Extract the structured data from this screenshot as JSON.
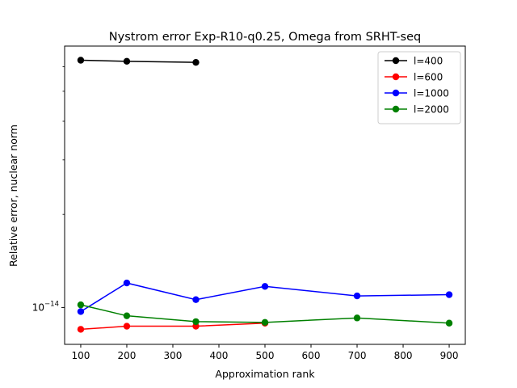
{
  "chart_data": {
    "type": "line",
    "title": "Nystrom error Exp-R10-q0.25, Omega from SRHT-seq",
    "xlabel": "Approximation rank",
    "ylabel": "Relative error, nuclear norm",
    "xlim": [
      65,
      935
    ],
    "ylim": [
      7.6e-15,
      7e-14
    ],
    "yscale": "log",
    "xticks": [
      100,
      200,
      300,
      400,
      500,
      600,
      700,
      800,
      900
    ],
    "xtick_labels": [
      "100",
      "200",
      "300",
      "400",
      "500",
      "600",
      "700",
      "800",
      "900"
    ],
    "ytick_major": {
      "value": 1e-14,
      "base": "10",
      "exp": "−14"
    },
    "yticks_minor": [
      2e-14,
      3e-14,
      4e-14,
      5e-14,
      6e-14
    ],
    "grid": false,
    "legend_position": "top-right",
    "series": [
      {
        "name": "l=400",
        "color": "#000000",
        "x": [
          100,
          200,
          350
        ],
        "y": [
          6.3e-14,
          6.25e-14,
          6.2e-14
        ]
      },
      {
        "name": "l=600",
        "color": "#ff0000",
        "x": [
          100,
          200,
          350,
          500
        ],
        "y": [
          8.5e-15,
          8.7e-15,
          8.7e-15,
          8.9e-15
        ]
      },
      {
        "name": "l=1000",
        "color": "#0000ff",
        "x": [
          100,
          200,
          350,
          500,
          700,
          900
        ],
        "y": [
          9.7e-15,
          1.2e-14,
          1.06e-14,
          1.17e-14,
          1.09e-14,
          1.1e-14
        ]
      },
      {
        "name": "l=2000",
        "color": "#008000",
        "x": [
          100,
          200,
          350,
          500,
          700,
          900
        ],
        "y": [
          1.02e-14,
          9.4e-15,
          9e-15,
          8.95e-15,
          9.25e-15,
          8.9e-15
        ]
      }
    ]
  }
}
